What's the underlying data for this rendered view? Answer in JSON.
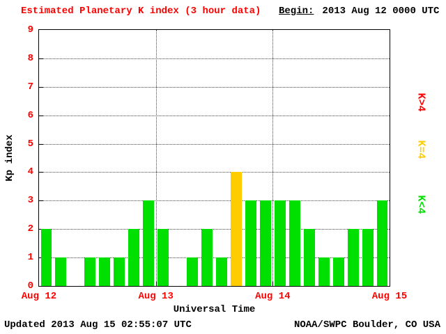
{
  "header": {
    "begin_label": "Begin:",
    "begin_value": "2013 Aug 12 0000 UTC"
  },
  "chart_data": {
    "type": "bar",
    "title": "Estimated Planetary K index (3 hour data)",
    "xlabel": "Universal Time",
    "ylabel": "Kp index",
    "ylim": [
      0,
      9
    ],
    "yticks": [
      0,
      1,
      2,
      3,
      4,
      5,
      6,
      7,
      8,
      9
    ],
    "xticks": [
      "Aug 12",
      "Aug 13",
      "Aug 14",
      "Aug 15"
    ],
    "bar_interval_hours": 3,
    "values": [
      2,
      1,
      0,
      1,
      1,
      1,
      2,
      3,
      2,
      0,
      1,
      2,
      1,
      4,
      3,
      3,
      3,
      3,
      2,
      1,
      1,
      2,
      2,
      3
    ],
    "grid": "dotted horizontal lines at each Kp integer, dotted vertical lines at day boundaries",
    "legend_position": "right, rotated 90deg",
    "color_rule": "green if K<4, yellow if K=4, red if K>4"
  },
  "legend": {
    "items": [
      {
        "label": "K>4",
        "color": "#ff0000"
      },
      {
        "label": "K=4",
        "color": "#ffcc00"
      },
      {
        "label": "K<4",
        "color": "#00e000"
      }
    ]
  },
  "footer": {
    "updated": "Updated 2013 Aug 15 02:55:07 UTC",
    "source": "NOAA/SWPC Boulder, CO USA"
  },
  "colors": {
    "accent_red": "#ff0000",
    "kp_low_green": "#00e000",
    "kp_mid_yellow": "#ffcc00",
    "kp_high_red": "#ff0000",
    "axis_black": "#000000",
    "background": "#ffffff"
  }
}
